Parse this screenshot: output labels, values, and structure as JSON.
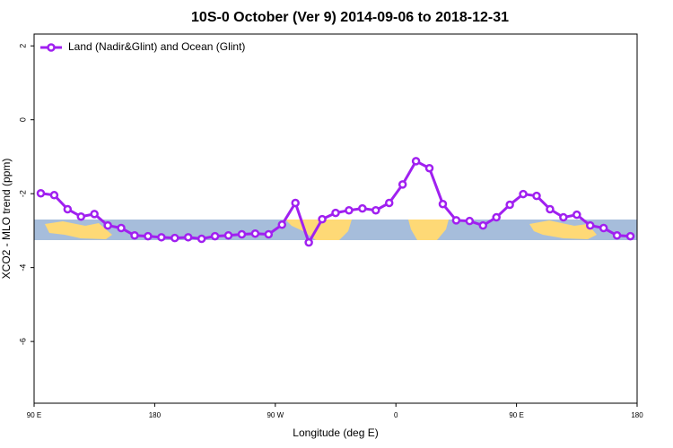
{
  "chart_data": {
    "type": "line",
    "title": "10S-0 October (Ver 9)   2014-09-06 to 2018-12-31",
    "x_label": "Longitude (deg E)",
    "y_label": "XCO2 - MLO trend (ppm)",
    "x": [
      95,
      105,
      115,
      125,
      135,
      145,
      155,
      165,
      175,
      185,
      195,
      205,
      215,
      225,
      235,
      245,
      255,
      265,
      275,
      285,
      295,
      305,
      315,
      325,
      335,
      345,
      355,
      365,
      375,
      385,
      395,
      405,
      415,
      425,
      435,
      445,
      455,
      465,
      475,
      485,
      495,
      505,
      515,
      525,
      535
    ],
    "series": [
      {
        "name": "Land (Nadir&Glint) and Ocean (Glint)",
        "color": "#a020f0",
        "values": [
          -1.99,
          -2.04,
          -2.42,
          -2.62,
          -2.55,
          -2.86,
          -2.93,
          -3.13,
          -3.15,
          -3.18,
          -3.2,
          -3.18,
          -3.22,
          -3.15,
          -3.13,
          -3.1,
          -3.08,
          -3.1,
          -2.84,
          -2.25,
          -3.32,
          -2.69,
          -2.52,
          -2.45,
          -2.4,
          -2.45,
          -2.25,
          -1.75,
          -1.12,
          -1.31,
          -2.28,
          -2.72,
          -2.74,
          -2.86,
          -2.64,
          -2.3,
          -2.01,
          -2.06,
          -2.42,
          -2.64,
          -2.57,
          -2.86,
          -2.93,
          -3.13,
          -3.15
        ]
      }
    ],
    "xlim": [
      90,
      540
    ],
    "xticks": [
      {
        "value": 90,
        "label": "90 E"
      },
      180,
      {
        "value": 270,
        "label": "90 W"
      },
      {
        "value": 360,
        "label": "0"
      },
      {
        "value": 450,
        "label": "90 E"
      },
      {
        "value": 540,
        "label": "180"
      }
    ],
    "ylim": [
      -7.67,
      2.32
    ],
    "yticks": [
      2,
      0,
      -2,
      -4,
      -6
    ],
    "legend": "top-left"
  }
}
